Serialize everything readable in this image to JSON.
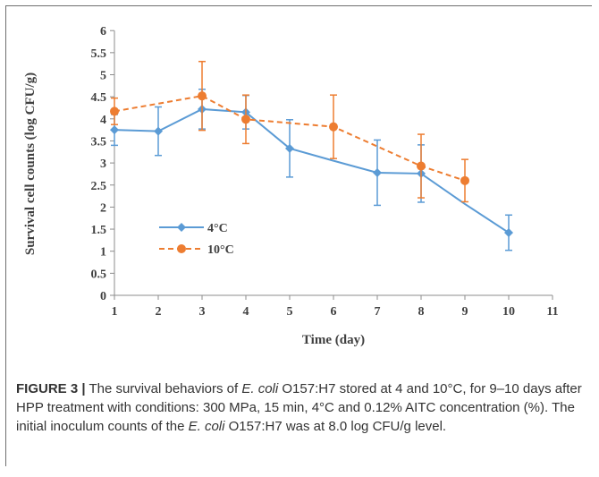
{
  "chart_data": {
    "type": "line",
    "xlabel": "Time (day)",
    "ylabel": "Survival cell counts  (log CFU/g)",
    "xlim": [
      1,
      11
    ],
    "ylim": [
      0,
      6
    ],
    "x_ticks": [
      1,
      2,
      3,
      4,
      5,
      6,
      7,
      8,
      9,
      10,
      11
    ],
    "y_ticks": [
      0,
      0.5,
      1,
      1.5,
      2,
      2.5,
      3,
      3.5,
      4,
      4.5,
      5,
      5.5,
      6
    ],
    "grid": false,
    "legend_position": "lower-left",
    "series": [
      {
        "name": "4°C",
        "color": "#5b9bd5",
        "line_style": "solid",
        "marker": "diamond",
        "x": [
          1,
          2,
          3,
          4,
          5,
          6,
          7,
          8,
          9,
          10
        ],
        "y": [
          3.75,
          3.72,
          4.22,
          4.15,
          3.33,
          3.05,
          2.78,
          2.76,
          2.07,
          1.42
        ],
        "error": [
          0.35,
          0.55,
          0.45,
          0.38,
          0.65,
          0,
          0.74,
          0.65,
          0,
          0.4
        ],
        "marker_shown": [
          true,
          true,
          true,
          true,
          true,
          false,
          true,
          true,
          false,
          true
        ]
      },
      {
        "name": "10°C",
        "color": "#ed7d31",
        "line_style": "dashed",
        "marker": "circle",
        "x": [
          1,
          3,
          4,
          6,
          8,
          9
        ],
        "y": [
          4.17,
          4.52,
          3.99,
          3.82,
          2.93,
          2.6
        ],
        "error": [
          0.3,
          0.78,
          0.55,
          0.72,
          0.72,
          0.48
        ],
        "marker_shown": [
          true,
          true,
          true,
          true,
          true,
          true
        ]
      }
    ]
  },
  "caption": {
    "label": "FIGURE 3 |",
    "text_1": " The survival behaviors of ",
    "italic_1": "E. coli",
    "text_2": " O157:H7 stored at 4 and 10°C, for 9–10 days after HPP treatment with conditions: 300 MPa, 15 min, 4°C and 0.12% AITC concentration (%). The initial inoculum counts of the ",
    "italic_2": "E. coli",
    "text_3": " O157:H7 was at 8.0 log CFU/g level."
  }
}
